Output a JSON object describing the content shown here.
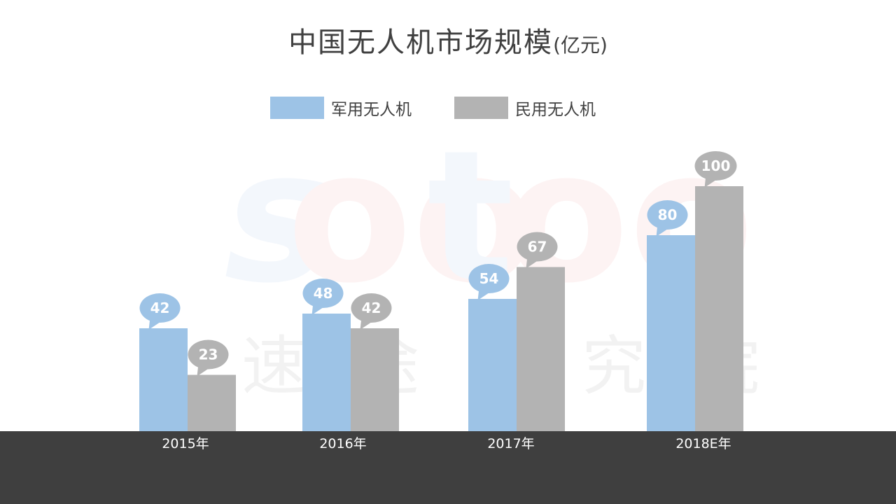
{
  "colors": {
    "military": "#9dc3e6",
    "civil": "#b3b3b3",
    "footer": "#3f3f3f",
    "title": "#404040"
  },
  "watermark": {
    "logo": "sootoo",
    "text": "速途研究院"
  },
  "chart_data": {
    "type": "bar",
    "title": "中国无人机市场规模",
    "title_unit": "(亿元)",
    "categories": [
      "2015年",
      "2016年",
      "2017年",
      "2018E年"
    ],
    "series": [
      {
        "name": "军用无人机",
        "values": [
          42,
          48,
          54,
          80
        ],
        "color": "#9dc3e6"
      },
      {
        "name": "民用无人机",
        "values": [
          23,
          42,
          67,
          100
        ],
        "color": "#b3b3b3"
      }
    ],
    "legend_position": "top-center",
    "data_labels": "speech-bubble",
    "grid": false,
    "xlabel": "",
    "ylabel": ""
  }
}
